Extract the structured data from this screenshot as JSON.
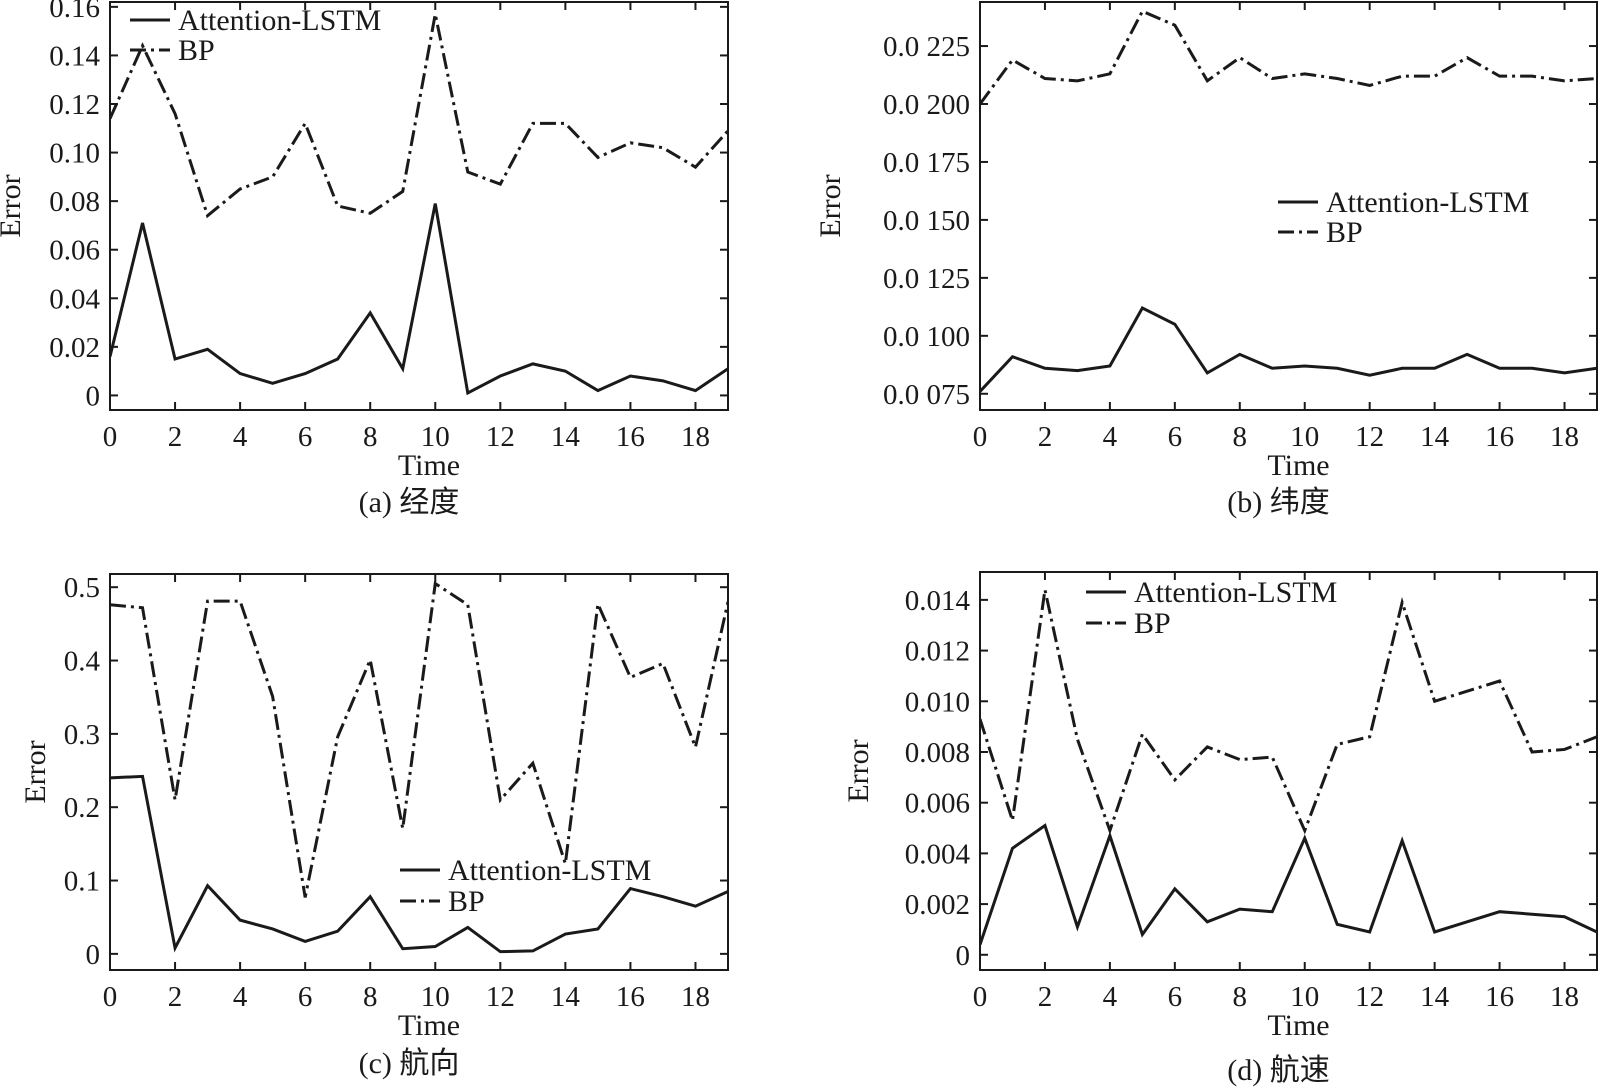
{
  "chart_data": [
    {
      "type": "line",
      "caption": "(a) 经度",
      "xlabel": "Time",
      "ylabel": "Error",
      "xlim": [
        0,
        19
      ],
      "ylim": [
        -0.006,
        0.162
      ],
      "x_ticks": [
        0,
        2,
        4,
        6,
        8,
        10,
        12,
        14,
        16,
        18
      ],
      "y_ticks": [
        0,
        0.02,
        0.04,
        0.06,
        0.08,
        0.1,
        0.12,
        0.14,
        0.16
      ],
      "y_tick_labels": [
        "0",
        "0.02",
        "0.04",
        "0.06",
        "0.08",
        "0.10",
        "0.12",
        "0.14",
        "0.16"
      ],
      "legend_position": "top-left",
      "x": [
        0,
        1,
        2,
        3,
        4,
        5,
        6,
        7,
        8,
        9,
        10,
        11,
        12,
        13,
        14,
        15,
        16,
        17,
        18,
        19
      ],
      "series": [
        {
          "name": "Attention-LSTM",
          "style": "solid",
          "values": [
            0.016,
            0.071,
            0.015,
            0.019,
            0.009,
            0.005,
            0.009,
            0.015,
            0.034,
            0.011,
            0.079,
            0.001,
            0.008,
            0.013,
            0.01,
            0.002,
            0.008,
            0.006,
            0.002,
            0.011
          ]
        },
        {
          "name": "BP",
          "style": "dash-dot",
          "values": [
            0.114,
            0.144,
            0.116,
            0.074,
            0.085,
            0.09,
            0.112,
            0.078,
            0.075,
            0.084,
            0.157,
            0.092,
            0.087,
            0.112,
            0.112,
            0.098,
            0.104,
            0.102,
            0.094,
            0.109
          ]
        }
      ]
    },
    {
      "type": "line",
      "caption": "(b) 纬度",
      "xlabel": "Time",
      "ylabel": "Error",
      "xlim": [
        0,
        19
      ],
      "ylim": [
        0.068,
        0.244
      ],
      "x_ticks": [
        0,
        2,
        4,
        6,
        8,
        10,
        12,
        14,
        16,
        18
      ],
      "y_ticks": [
        0.075,
        0.1,
        0.125,
        0.15,
        0.175,
        0.2,
        0.225
      ],
      "y_tick_labels": [
        "0.0 075",
        "0.0 100",
        "0.0 125",
        "0.0 150",
        "0.0 175",
        "0.0 200",
        "0.0 225"
      ],
      "legend_position": "center-right",
      "x": [
        0,
        1,
        2,
        3,
        4,
        5,
        6,
        7,
        8,
        9,
        10,
        11,
        12,
        13,
        14,
        15,
        16,
        17,
        18,
        19
      ],
      "series": [
        {
          "name": "Attention-LSTM",
          "style": "solid",
          "values": [
            0.076,
            0.091,
            0.086,
            0.085,
            0.087,
            0.112,
            0.105,
            0.084,
            0.092,
            0.086,
            0.087,
            0.086,
            0.083,
            0.086,
            0.086,
            0.092,
            0.086,
            0.086,
            0.084,
            0.086
          ]
        },
        {
          "name": "BP",
          "style": "dash-dot",
          "values": [
            0.2,
            0.219,
            0.211,
            0.21,
            0.213,
            0.24,
            0.234,
            0.21,
            0.22,
            0.211,
            0.213,
            0.211,
            0.208,
            0.212,
            0.212,
            0.22,
            0.212,
            0.212,
            0.21,
            0.211
          ]
        }
      ]
    },
    {
      "type": "line",
      "caption": "(c) 航向",
      "xlabel": "Time",
      "ylabel": "Error",
      "xlim": [
        0,
        19
      ],
      "ylim": [
        -0.022,
        0.518
      ],
      "x_ticks": [
        0,
        2,
        4,
        6,
        8,
        10,
        12,
        14,
        16,
        18
      ],
      "y_ticks": [
        0,
        0.1,
        0.2,
        0.3,
        0.4,
        0.5
      ],
      "y_tick_labels": [
        "0",
        "0.1",
        "0.2",
        "0.3",
        "0.4",
        "0.5"
      ],
      "legend_position": "lower-right",
      "x": [
        0,
        1,
        2,
        3,
        4,
        5,
        6,
        7,
        8,
        9,
        10,
        11,
        12,
        13,
        14,
        15,
        16,
        17,
        18,
        19
      ],
      "series": [
        {
          "name": "Attention-LSTM",
          "style": "solid",
          "values": [
            0.24,
            0.242,
            0.008,
            0.093,
            0.046,
            0.034,
            0.017,
            0.031,
            0.078,
            0.007,
            0.01,
            0.036,
            0.003,
            0.004,
            0.027,
            0.034,
            0.089,
            0.078,
            0.065,
            0.085
          ]
        },
        {
          "name": "BP",
          "style": "dash-dot",
          "values": [
            0.476,
            0.472,
            0.21,
            0.481,
            0.481,
            0.351,
            0.077,
            0.296,
            0.401,
            0.171,
            0.505,
            0.476,
            0.21,
            0.26,
            0.123,
            0.477,
            0.377,
            0.396,
            0.282,
            0.48
          ]
        }
      ]
    },
    {
      "type": "line",
      "caption": "(d) 航速",
      "xlabel": "Time",
      "ylabel": "Error",
      "xlim": [
        0,
        19
      ],
      "ylim": [
        -0.0006,
        0.0151
      ],
      "x_ticks": [
        0,
        2,
        4,
        6,
        8,
        10,
        12,
        14,
        16,
        18
      ],
      "y_ticks": [
        0,
        0.002,
        0.004,
        0.006,
        0.008,
        0.01,
        0.012,
        0.014
      ],
      "y_tick_labels": [
        "0",
        "0.002",
        "0.004",
        "0.006",
        "0.008",
        "0.010",
        "0.012",
        "0.014"
      ],
      "legend_position": "top-left",
      "x": [
        0,
        1,
        2,
        3,
        4,
        5,
        6,
        7,
        8,
        9,
        10,
        11,
        12,
        13,
        14,
        15,
        16,
        17,
        18,
        19
      ],
      "series": [
        {
          "name": "Attention-LSTM",
          "style": "solid",
          "values": [
            0.0004,
            0.0042,
            0.0051,
            0.0011,
            0.0047,
            0.0008,
            0.0026,
            0.0013,
            0.0018,
            0.0017,
            0.0046,
            0.0012,
            0.0009,
            0.0045,
            0.0009,
            0.0013,
            0.0017,
            0.0016,
            0.0015,
            0.0009
          ]
        },
        {
          "name": "BP",
          "style": "dash-dot",
          "values": [
            0.0093,
            0.0053,
            0.0144,
            0.0085,
            0.0049,
            0.0087,
            0.0069,
            0.0082,
            0.0077,
            0.0078,
            0.0049,
            0.0083,
            0.0086,
            0.0139,
            0.01,
            0.0104,
            0.0108,
            0.008,
            0.0081,
            0.0086
          ]
        }
      ]
    }
  ]
}
